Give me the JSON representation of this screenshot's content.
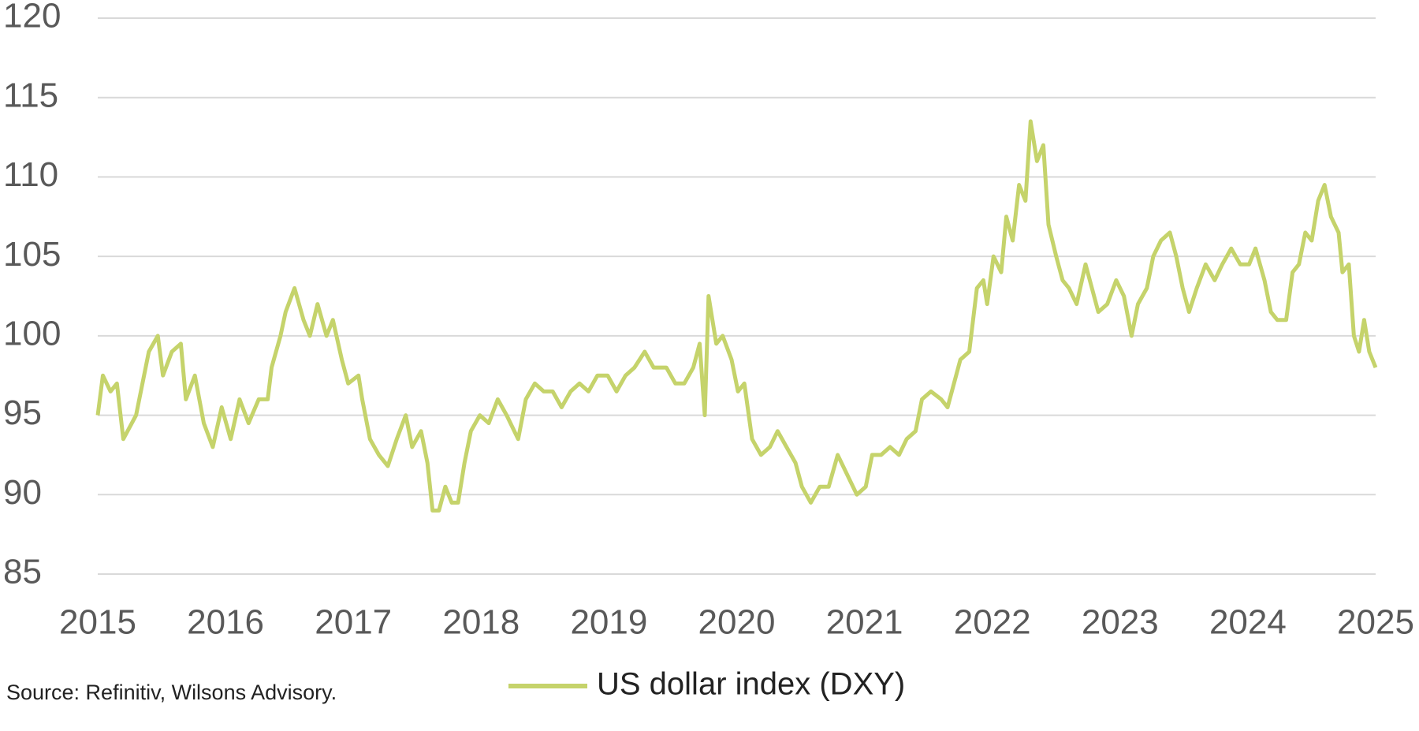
{
  "chart_data": {
    "type": "line",
    "source": "Source: Refinitiv, Wilsons Advisory.",
    "xlim": [
      2015,
      2025
    ],
    "xticks": [
      2015,
      2016,
      2017,
      2018,
      2019,
      2020,
      2021,
      2022,
      2023,
      2024,
      2025
    ],
    "ylim": [
      85,
      120
    ],
    "yticks": [
      85,
      90,
      95,
      100,
      105,
      110,
      115,
      120
    ],
    "grid": true,
    "x": [
      2015.0,
      2015.04,
      2015.1,
      2015.15,
      2015.2,
      2015.3,
      2015.4,
      2015.47,
      2015.51,
      2015.58,
      2015.65,
      2015.69,
      2015.76,
      2015.83,
      2015.9,
      2015.97,
      2016.04,
      2016.11,
      2016.18,
      2016.26,
      2016.33,
      2016.36,
      2016.43,
      2016.47,
      2016.54,
      2016.61,
      2016.66,
      2016.72,
      2016.79,
      2016.84,
      2016.91,
      2016.96,
      2017.04,
      2017.07,
      2017.13,
      2017.2,
      2017.27,
      2017.34,
      2017.41,
      2017.46,
      2017.53,
      2017.58,
      2017.62,
      2017.67,
      2017.72,
      2017.77,
      2017.82,
      2017.87,
      2017.92,
      2017.99,
      2018.06,
      2018.13,
      2018.2,
      2018.29,
      2018.35,
      2018.42,
      2018.49,
      2018.56,
      2018.63,
      2018.7,
      2018.77,
      2018.84,
      2018.91,
      2018.99,
      2019.06,
      2019.13,
      2019.2,
      2019.28,
      2019.35,
      2019.45,
      2019.52,
      2019.59,
      2019.66,
      2019.71,
      2019.75,
      2019.78,
      2019.84,
      2019.89,
      2019.96,
      2020.01,
      2020.06,
      2020.12,
      2020.19,
      2020.26,
      2020.32,
      2020.39,
      2020.46,
      2020.51,
      2020.58,
      2020.65,
      2020.72,
      2020.79,
      2020.85,
      2020.94,
      2021.01,
      2021.06,
      2021.13,
      2021.2,
      2021.27,
      2021.33,
      2021.4,
      2021.45,
      2021.52,
      2021.6,
      2021.65,
      2021.7,
      2021.75,
      2021.82,
      2021.88,
      2021.93,
      2021.96,
      2022.01,
      2022.07,
      2022.11,
      2022.16,
      2022.21,
      2022.26,
      2022.3,
      2022.35,
      2022.4,
      2022.44,
      2022.5,
      2022.55,
      2022.6,
      2022.66,
      2022.73,
      2022.78,
      2022.83,
      2022.9,
      2022.97,
      2023.03,
      2023.09,
      2023.14,
      2023.21,
      2023.26,
      2023.32,
      2023.39,
      2023.44,
      2023.49,
      2023.54,
      2023.6,
      2023.67,
      2023.74,
      2023.8,
      2023.87,
      2023.94,
      2024.01,
      2024.06,
      2024.13,
      2024.18,
      2024.23,
      2024.3,
      2024.35,
      2024.4,
      2024.45,
      2024.5,
      2024.55,
      2024.6,
      2024.65,
      2024.71,
      2024.74,
      2024.79,
      2024.83,
      2024.87,
      2024.91,
      2024.95,
      2025.0
    ],
    "series": [
      {
        "name": "US dollar index (DXY)",
        "color": "#c5d36b",
        "values": [
          95,
          97.5,
          96.5,
          97,
          93.5,
          95,
          99,
          100,
          97.5,
          99,
          99.5,
          96,
          97.5,
          94.5,
          93,
          95.5,
          93.5,
          96,
          94.5,
          96,
          96,
          98,
          100,
          101.5,
          103,
          101,
          100,
          102,
          100,
          101,
          98.5,
          97,
          97.5,
          96,
          93.5,
          92.5,
          91.8,
          93.5,
          95,
          93,
          94,
          92,
          89,
          89,
          90.5,
          89.5,
          89.5,
          92,
          94,
          95,
          94.5,
          96,
          95,
          93.5,
          96,
          97,
          96.5,
          96.5,
          95.5,
          96.5,
          97,
          96.5,
          97.5,
          97.5,
          96.5,
          97.5,
          98,
          99,
          98,
          98,
          97,
          97,
          98,
          99.5,
          95,
          102.5,
          99.5,
          100,
          98.5,
          96.5,
          97,
          93.5,
          92.5,
          93,
          94,
          93,
          92,
          90.5,
          89.5,
          90.5,
          90.5,
          92.5,
          91.5,
          90,
          90.5,
          92.5,
          92.5,
          93,
          92.5,
          93.5,
          94,
          96,
          96.5,
          96,
          95.5,
          97,
          98.5,
          99,
          103,
          103.5,
          102,
          105,
          104,
          107.5,
          106,
          109.5,
          108.5,
          113.5,
          111,
          112,
          107,
          105,
          103.5,
          103,
          102,
          104.5,
          103,
          101.5,
          102,
          103.5,
          102.5,
          100,
          102,
          103,
          105,
          106,
          106.5,
          105,
          103,
          101.5,
          103,
          104.5,
          103.5,
          104.5,
          105.5,
          104.5,
          104.5,
          105.5,
          103.5,
          101.5,
          101,
          101,
          104,
          104.5,
          106.5,
          106,
          108.5,
          109.5,
          107.5,
          106.5,
          104,
          104.5,
          100,
          99,
          101,
          99,
          98
        ]
      }
    ]
  }
}
